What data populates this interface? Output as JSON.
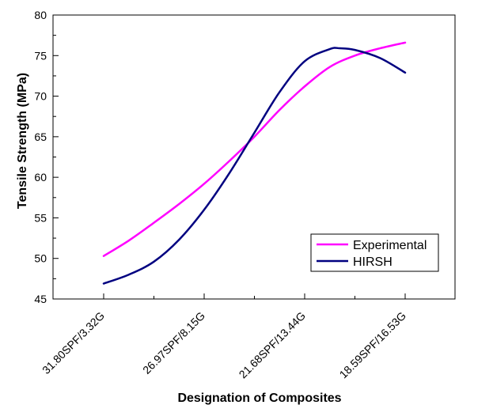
{
  "chart_data": {
    "type": "line",
    "title": "",
    "xlabel": "Designation of Composites",
    "ylabel": "Tensile Strength (MPa)",
    "categories": [
      "31.80SPF/3.32G",
      "26.97SPF/8.15G",
      "21.68SPF/13.44G",
      "18.59SPF/16.53G"
    ],
    "ylim": [
      45,
      80
    ],
    "yticks": [
      45,
      50,
      55,
      60,
      65,
      70,
      75,
      80
    ],
    "grid": false,
    "legend_position": "bottom-right",
    "series": [
      {
        "name": "Experimental",
        "color": "#ff00ff",
        "x": [
          0,
          0.25,
          0.5,
          0.75,
          1.0,
          1.25,
          1.5,
          1.75,
          2.0,
          2.25,
          2.5,
          2.75,
          3.0
        ],
        "y": [
          50.3,
          52.2,
          54.4,
          56.7,
          59.2,
          62.0,
          65.0,
          68.3,
          71.2,
          73.6,
          75.0,
          75.9,
          76.6
        ]
      },
      {
        "name": "HIRSH",
        "color": "#000080",
        "x": [
          0,
          0.25,
          0.5,
          0.75,
          1.0,
          1.25,
          1.5,
          1.75,
          2.0,
          2.25,
          2.35,
          2.5,
          2.75,
          3.0
        ],
        "y": [
          46.9,
          48.0,
          49.6,
          52.3,
          56.0,
          60.5,
          65.5,
          70.5,
          74.3,
          75.8,
          75.9,
          75.7,
          74.7,
          72.9
        ]
      }
    ]
  }
}
